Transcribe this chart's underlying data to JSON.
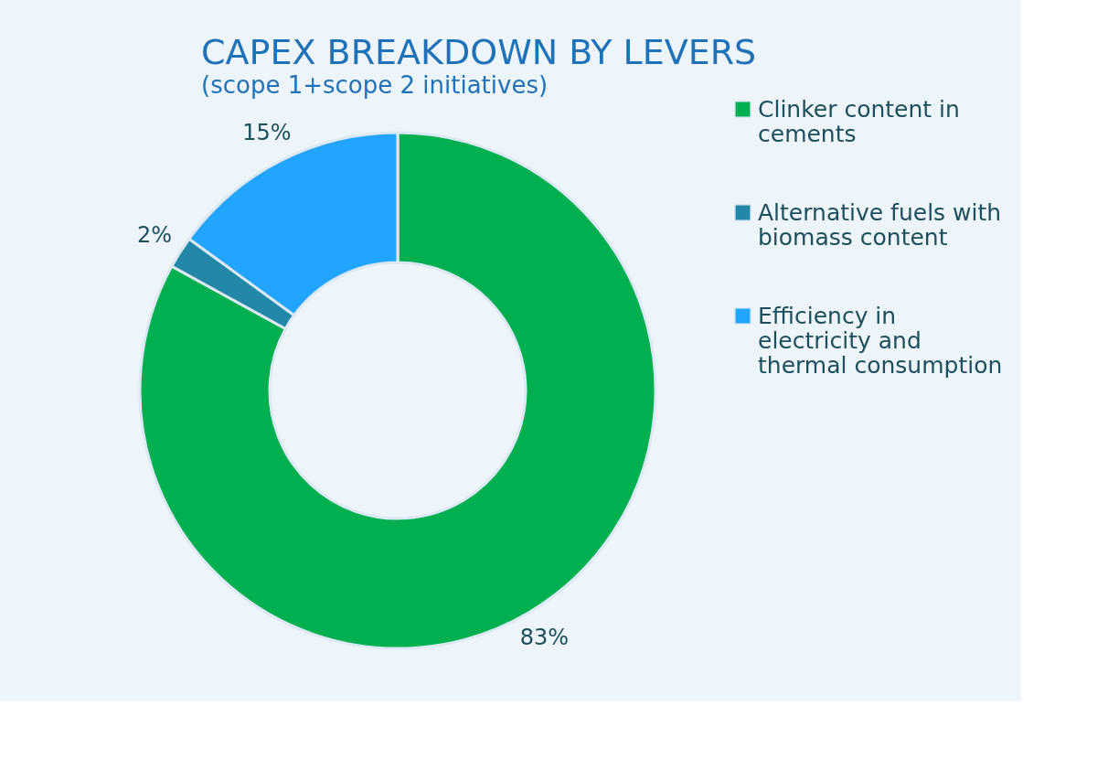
{
  "chart_data": {
    "type": "donut",
    "title": "CAPEX BREAKDOWN BY LEVERS",
    "subtitle": "(scope 1+scope 2 initiatives)",
    "categories": [
      "Clinker content in cements",
      "Alternative fuels with biomass content",
      "Efficiency in electricity and thermal consumption"
    ],
    "values": [
      83,
      2,
      15
    ],
    "colors": [
      "#00b050",
      "#2387a8",
      "#22a5ff"
    ],
    "value_labels": [
      "83%",
      "2%",
      "15%"
    ],
    "legend": "right"
  }
}
